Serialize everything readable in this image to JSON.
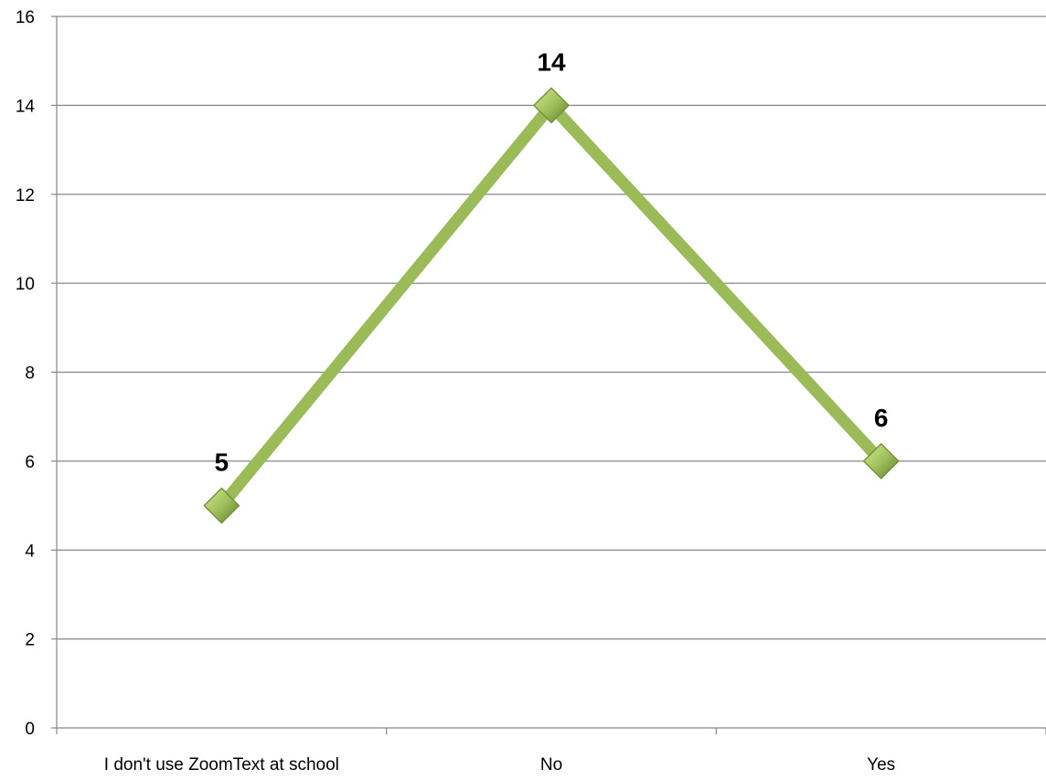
{
  "chart_data": {
    "type": "line",
    "categories": [
      "I don't use ZoomText at school",
      "No",
      "Yes"
    ],
    "values": [
      5,
      14,
      6
    ],
    "data_labels": [
      "5",
      "14",
      "6"
    ],
    "y_ticks": [
      "0",
      "2",
      "4",
      "6",
      "8",
      "10",
      "12",
      "14",
      "16"
    ],
    "ylim": [
      0,
      16
    ],
    "grid": true,
    "legend": "none",
    "colors": {
      "line": "#9BBB59",
      "marker_light": "#C3E07A",
      "marker_dark": "#76933C",
      "grid": "#868686",
      "axis": "#868686"
    }
  }
}
